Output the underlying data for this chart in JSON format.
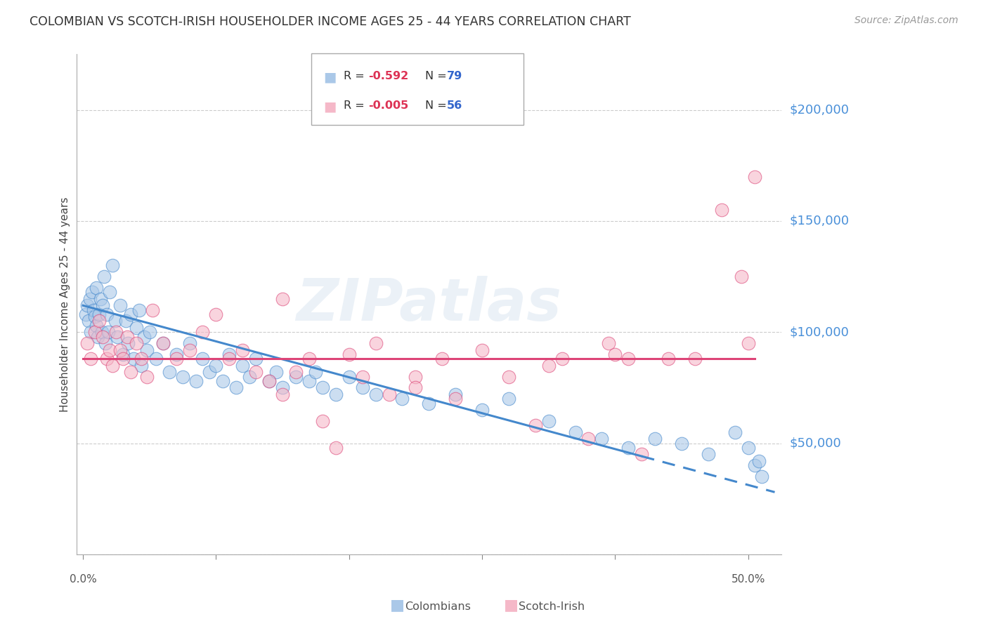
{
  "title": "COLOMBIAN VS SCOTCH-IRISH HOUSEHOLDER INCOME AGES 25 - 44 YEARS CORRELATION CHART",
  "source": "Source: ZipAtlas.com",
  "ylabel": "Householder Income Ages 25 - 44 years",
  "y_ticks": [
    0,
    50000,
    100000,
    150000,
    200000
  ],
  "y_tick_labels": [
    "",
    "$50,000",
    "$100,000",
    "$150,000",
    "$200,000"
  ],
  "xlim": [
    -0.005,
    0.525
  ],
  "ylim": [
    0,
    225000
  ],
  "background_color": "#ffffff",
  "grid_color": "#cccccc",
  "watermark_text": "ZIPatlas",
  "legend_r1": "R = ",
  "legend_r1_val": "-0.592",
  "legend_n1": "N = ",
  "legend_n1_val": "79",
  "legend_r2": "R = ",
  "legend_r2_val": "-0.005",
  "legend_n2": "N = ",
  "legend_n2_val": "56",
  "colombian_color": "#aac8e8",
  "scotch_irish_color": "#f5b8c8",
  "colombian_line_color": "#4488cc",
  "scotch_irish_line_color": "#dd4477",
  "col_R": -0.592,
  "col_N": 79,
  "si_R": -0.005,
  "si_N": 56,
  "colombian_scatter_x": [
    0.002,
    0.003,
    0.004,
    0.005,
    0.006,
    0.007,
    0.008,
    0.009,
    0.01,
    0.01,
    0.011,
    0.012,
    0.013,
    0.014,
    0.015,
    0.016,
    0.017,
    0.018,
    0.019,
    0.02,
    0.022,
    0.024,
    0.026,
    0.028,
    0.03,
    0.032,
    0.034,
    0.036,
    0.038,
    0.04,
    0.042,
    0.044,
    0.046,
    0.048,
    0.05,
    0.055,
    0.06,
    0.065,
    0.07,
    0.075,
    0.08,
    0.085,
    0.09,
    0.095,
    0.1,
    0.105,
    0.11,
    0.115,
    0.12,
    0.125,
    0.13,
    0.14,
    0.145,
    0.15,
    0.16,
    0.17,
    0.175,
    0.18,
    0.19,
    0.2,
    0.21,
    0.22,
    0.24,
    0.26,
    0.28,
    0.3,
    0.32,
    0.35,
    0.37,
    0.39,
    0.41,
    0.43,
    0.45,
    0.47,
    0.49,
    0.5,
    0.505,
    0.508,
    0.51
  ],
  "colombian_scatter_y": [
    108000,
    112000,
    105000,
    115000,
    100000,
    118000,
    110000,
    107000,
    103000,
    120000,
    98000,
    108000,
    115000,
    100000,
    112000,
    125000,
    95000,
    108000,
    100000,
    118000,
    130000,
    105000,
    98000,
    112000,
    90000,
    105000,
    95000,
    108000,
    88000,
    102000,
    110000,
    85000,
    98000,
    92000,
    100000,
    88000,
    95000,
    82000,
    90000,
    80000,
    95000,
    78000,
    88000,
    82000,
    85000,
    78000,
    90000,
    75000,
    85000,
    80000,
    88000,
    78000,
    82000,
    75000,
    80000,
    78000,
    82000,
    75000,
    72000,
    80000,
    75000,
    72000,
    70000,
    68000,
    72000,
    65000,
    70000,
    60000,
    55000,
    52000,
    48000,
    52000,
    50000,
    45000,
    55000,
    48000,
    40000,
    42000,
    35000
  ],
  "scotch_irish_scatter_x": [
    0.003,
    0.006,
    0.009,
    0.012,
    0.015,
    0.018,
    0.02,
    0.022,
    0.025,
    0.028,
    0.03,
    0.033,
    0.036,
    0.04,
    0.044,
    0.048,
    0.052,
    0.06,
    0.07,
    0.08,
    0.09,
    0.1,
    0.11,
    0.12,
    0.13,
    0.14,
    0.15,
    0.16,
    0.17,
    0.18,
    0.19,
    0.2,
    0.21,
    0.22,
    0.23,
    0.25,
    0.27,
    0.28,
    0.3,
    0.32,
    0.34,
    0.36,
    0.38,
    0.395,
    0.41,
    0.42,
    0.44,
    0.46,
    0.48,
    0.495,
    0.5,
    0.505,
    0.4,
    0.35,
    0.25,
    0.15
  ],
  "scotch_irish_scatter_y": [
    95000,
    88000,
    100000,
    105000,
    98000,
    88000,
    92000,
    85000,
    100000,
    92000,
    88000,
    98000,
    82000,
    95000,
    88000,
    80000,
    110000,
    95000,
    88000,
    92000,
    100000,
    108000,
    88000,
    92000,
    82000,
    78000,
    72000,
    82000,
    88000,
    60000,
    48000,
    90000,
    80000,
    95000,
    72000,
    80000,
    88000,
    70000,
    92000,
    80000,
    58000,
    88000,
    52000,
    95000,
    88000,
    45000,
    88000,
    88000,
    155000,
    125000,
    95000,
    170000,
    90000,
    85000,
    75000,
    115000
  ]
}
